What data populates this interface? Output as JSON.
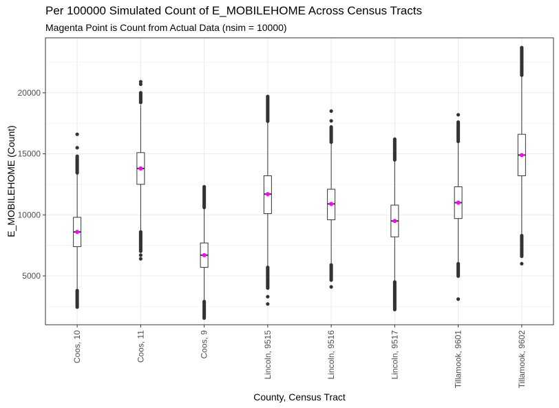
{
  "chart_data": {
    "type": "boxplot",
    "title": "Per 100000 Simulated Count of E_MOBILEHOME Across Census Tracts",
    "subtitle": "Magenta Point is Count from Actual Data (nsim = 10000)",
    "xlabel": "County, Census Tract",
    "ylabel": "E_MOBILEHOME (Count)",
    "ylim": [
      1000,
      24500
    ],
    "yticks": [
      5000,
      10000,
      15000,
      20000
    ],
    "grid": true,
    "colors": {
      "actual_point": "#ff00ff",
      "outlier": "#333333",
      "box": "#333333",
      "grid": "#ebebeb"
    },
    "categories": [
      "Coos, 10",
      "Coos, 11",
      "Coos, 9",
      "Lincoln, 9515",
      "Lincoln, 9516",
      "Lincoln, 9517",
      "Tillamook, 9601",
      "Tillamook, 9602"
    ],
    "series": [
      {
        "category": "Coos, 10",
        "q1": 7400,
        "median": 8600,
        "q3": 9800,
        "whisker_low": 3800,
        "whisker_high": 13400,
        "actual": 8600,
        "outlier_low_range": [
          2400,
          3800
        ],
        "outlier_high_range": [
          13400,
          14800
        ],
        "outliers_extra": [
          15500,
          16600
        ]
      },
      {
        "category": "Coos, 11",
        "q1": 12500,
        "median": 13800,
        "q3": 15100,
        "whisker_low": 8700,
        "whisker_high": 19000,
        "actual": 13800,
        "outlier_low_range": [
          7000,
          8600
        ],
        "outlier_high_range": [
          19200,
          20000
        ],
        "outliers_extra": [
          6400,
          6700,
          20700,
          20900
        ]
      },
      {
        "category": "Coos, 9",
        "q1": 5700,
        "median": 6700,
        "q3": 7700,
        "whisker_low": 2900,
        "whisker_high": 10500,
        "actual": 6700,
        "outlier_low_range": [
          1500,
          2900
        ],
        "outlier_high_range": [
          10500,
          12300
        ],
        "outliers_extra": []
      },
      {
        "category": "Lincoln, 9515",
        "q1": 10100,
        "median": 11700,
        "q3": 13200,
        "whisker_low": 5700,
        "whisker_high": 17600,
        "actual": 11700,
        "outlier_low_range": [
          3900,
          5700
        ],
        "outlier_high_range": [
          17600,
          19700
        ],
        "outliers_extra": [
          2700,
          3300
        ]
      },
      {
        "category": "Lincoln, 9516",
        "q1": 9600,
        "median": 10900,
        "q3": 12100,
        "whisker_low": 5900,
        "whisker_high": 15900,
        "actual": 10900,
        "outlier_low_range": [
          4600,
          5900
        ],
        "outlier_high_range": [
          15900,
          17200
        ],
        "outliers_extra": [
          4100,
          17700,
          18500
        ]
      },
      {
        "category": "Lincoln, 9517",
        "q1": 8200,
        "median": 9500,
        "q3": 10800,
        "whisker_low": 4500,
        "whisker_high": 14500,
        "actual": 9500,
        "outlier_low_range": [
          2200,
          4500
        ],
        "outlier_high_range": [
          14500,
          16200
        ],
        "outliers_extra": []
      },
      {
        "category": "Tillamook, 9601",
        "q1": 9700,
        "median": 11000,
        "q3": 12300,
        "whisker_low": 6000,
        "whisker_high": 16000,
        "actual": 11000,
        "outlier_low_range": [
          4900,
          6000
        ],
        "outlier_high_range": [
          16000,
          17600
        ],
        "outliers_extra": [
          3100,
          18200
        ]
      },
      {
        "category": "Tillamook, 9602",
        "q1": 13200,
        "median": 14900,
        "q3": 16600,
        "whisker_low": 8300,
        "whisker_high": 21400,
        "actual": 14900,
        "outlier_low_range": [
          6600,
          8300
        ],
        "outlier_high_range": [
          21400,
          23700
        ],
        "outliers_extra": [
          6000
        ]
      }
    ]
  }
}
